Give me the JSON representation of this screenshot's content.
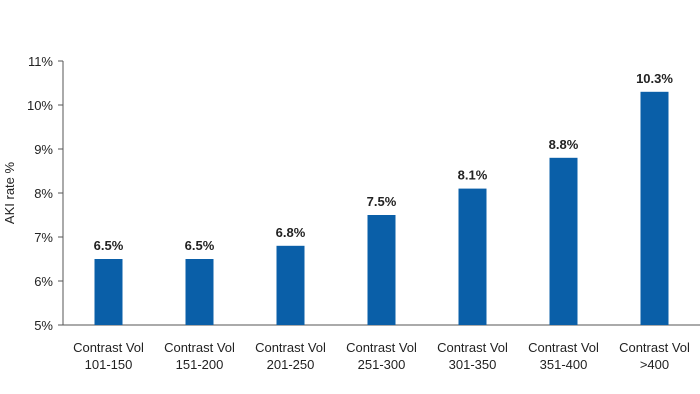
{
  "chart_data": {
    "type": "bar",
    "y_label": "AKI rate %",
    "categories": [
      "Contrast Vol\n101-150",
      "Contrast Vol\n151-200",
      "Contrast Vol\n201-250",
      "Contrast Vol\n251-300",
      "Contrast Vol\n301-350",
      "Contrast Vol\n351-400",
      "Contrast Vol\n>400"
    ],
    "values": [
      6.5,
      6.5,
      6.8,
      7.5,
      8.1,
      8.8,
      10.3
    ],
    "value_labels": [
      "6.5%",
      "6.5%",
      "6.8%",
      "7.5%",
      "8.1%",
      "8.8%",
      "10.3%"
    ],
    "color": "#0a5fa8",
    "ylim": [
      5,
      11
    ],
    "yticks": [
      {
        "value": 5,
        "label": "5%"
      },
      {
        "value": 6,
        "label": "6%"
      },
      {
        "value": 7,
        "label": "7%"
      },
      {
        "value": 8,
        "label": "8%"
      },
      {
        "value": 9,
        "label": "9%"
      },
      {
        "value": 10,
        "label": "10%"
      },
      {
        "value": 11,
        "label": "11%"
      }
    ],
    "grid": false
  }
}
